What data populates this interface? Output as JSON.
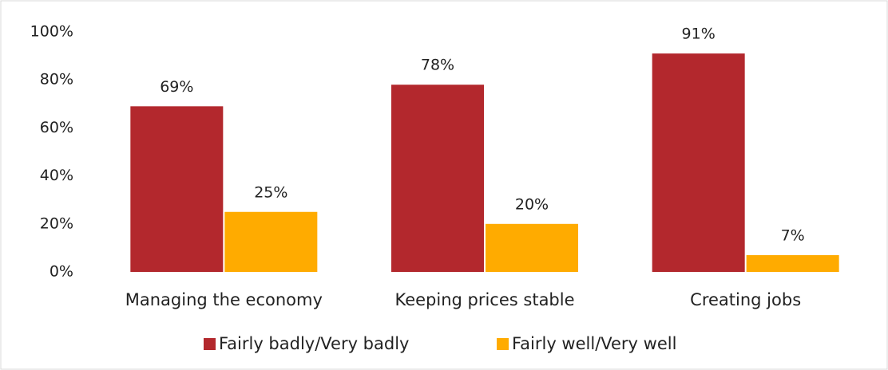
{
  "chart_data": {
    "type": "bar",
    "categories": [
      "Managing the economy",
      "Keeping prices stable",
      "Creating jobs"
    ],
    "series": [
      {
        "name": "Fairly badly/Very badly",
        "color": "#b3282d",
        "values": [
          69,
          78,
          91
        ],
        "value_labels": [
          "69%",
          "78%",
          "91%"
        ]
      },
      {
        "name": "Fairly well/Very well",
        "color": "#ffab00",
        "values": [
          25,
          20,
          7
        ],
        "value_labels": [
          "25%",
          "20%",
          "7%"
        ]
      }
    ],
    "ylim": [
      0,
      100
    ],
    "yticks": [
      {
        "value": 0,
        "label": "0%"
      },
      {
        "value": 20,
        "label": "20%"
      },
      {
        "value": 40,
        "label": "40%"
      },
      {
        "value": 60,
        "label": "60%"
      },
      {
        "value": 80,
        "label": "80%"
      },
      {
        "value": 100,
        "label": "100%"
      }
    ],
    "grid": false,
    "legend": "bottom"
  }
}
